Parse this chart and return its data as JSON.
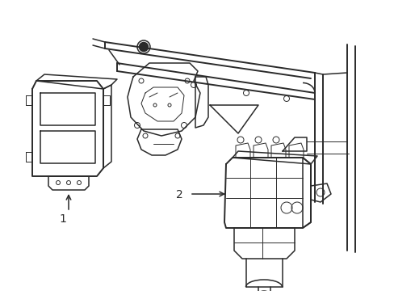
{
  "background_color": "#ffffff",
  "line_color": "#2a2a2a",
  "label1": "1",
  "label2": "2",
  "figsize": [
    4.89,
    3.6
  ],
  "dpi": 100,
  "lw_main": 1.1,
  "lw_thin": 0.7,
  "lw_thick": 1.4
}
